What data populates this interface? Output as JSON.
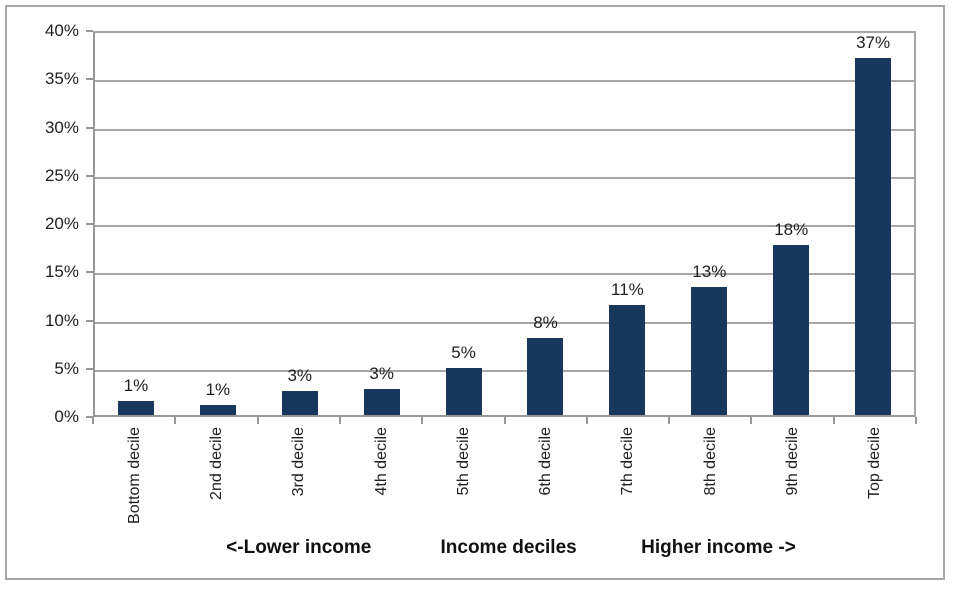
{
  "chart_data": {
    "type": "bar",
    "title": "",
    "xlabel": "Income deciles",
    "ylabel": "",
    "categories": [
      "Bottom decile",
      "2nd decile",
      "3rd decile",
      "4th decile",
      "5th decile",
      "6th decile",
      "7th decile",
      "8th decile",
      "9th decile",
      "Top decile"
    ],
    "values": [
      1.4,
      1.0,
      2.5,
      2.7,
      4.9,
      8.0,
      11.4,
      13.3,
      17.6,
      37.3
    ],
    "bar_labels": [
      "1%",
      "1%",
      "3%",
      "3%",
      "5%",
      "8%",
      "11%",
      "13%",
      "18%",
      "37%"
    ],
    "ylim": [
      0,
      40
    ],
    "ytick_step": 5,
    "ytick_labels_top_to_bottom": [
      "40%",
      "35%",
      "30%",
      "25%",
      "20%",
      "15%",
      "10%",
      "5%",
      "0%"
    ],
    "grid": true,
    "legend": false,
    "bar_color": "#17375D",
    "axis_annotations": {
      "left": "<-Lower income",
      "center": "Income deciles",
      "right": "Higher income ->"
    }
  },
  "colors": {
    "bar": "#17375D",
    "gridline": "#a6a6a6",
    "axis": "#969696",
    "frame_border": "#a6a6a6",
    "text": "#1f1f1f",
    "background": "#ffffff"
  }
}
